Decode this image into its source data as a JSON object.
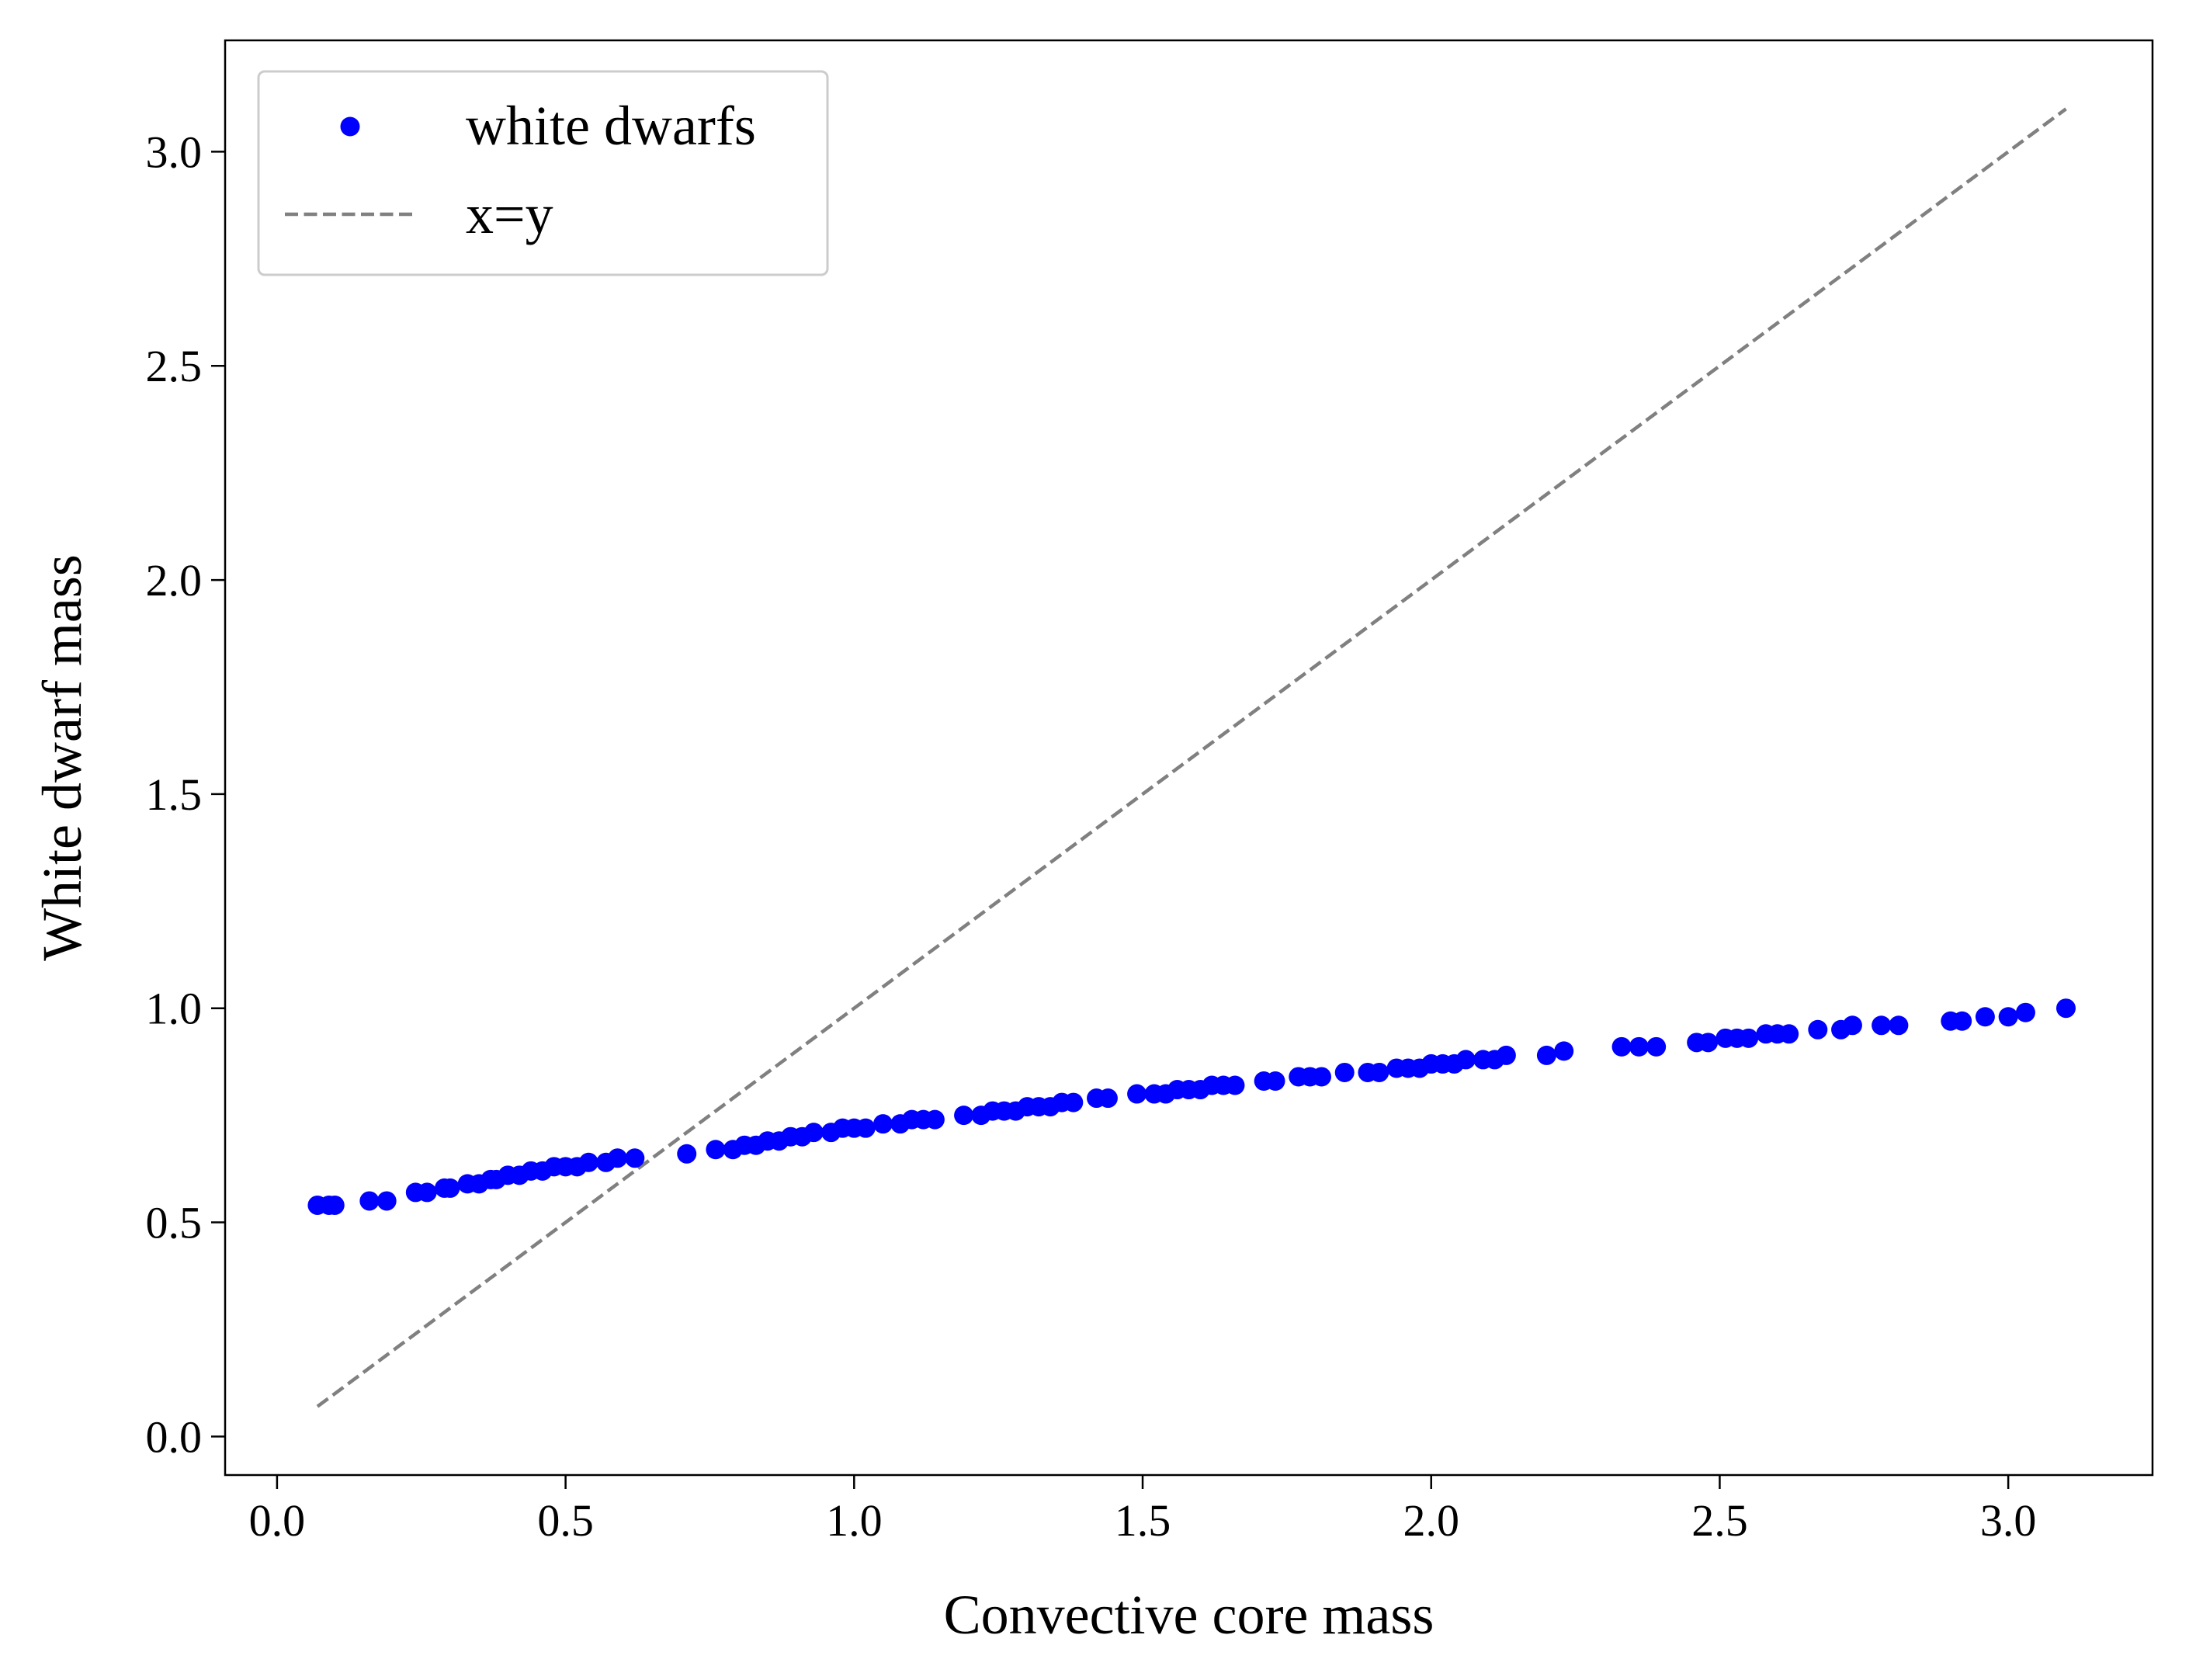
{
  "chart_data": {
    "type": "scatter",
    "xlabel": "Convective core mass",
    "ylabel": "White dwarf mass",
    "xlim": [
      -0.09,
      3.25
    ],
    "ylim": [
      -0.09,
      3.26
    ],
    "xticks": [
      0.0,
      0.5,
      1.0,
      1.5,
      2.0,
      2.5,
      3.0
    ],
    "xtick_labels": [
      "0.0",
      "0.5",
      "1.0",
      "1.5",
      "2.0",
      "2.5",
      "3.0"
    ],
    "yticks": [
      0.0,
      0.5,
      1.0,
      1.5,
      2.0,
      2.5,
      3.0
    ],
    "ytick_labels": [
      "0.0",
      "0.5",
      "1.0",
      "1.5",
      "2.0",
      "2.5",
      "3.0"
    ],
    "grid": false,
    "legend": {
      "placement": "upper-left",
      "entries": [
        {
          "label": "white dwarfs",
          "marker": "dot",
          "color": "#0000ff"
        },
        {
          "label": "x=y",
          "marker": "dashed-line",
          "color": "#808080"
        }
      ]
    },
    "series": [
      {
        "name": "white dwarfs",
        "kind": "scatter",
        "color": "#0000ff",
        "x": [
          0.07,
          0.09,
          0.1,
          0.16,
          0.19,
          0.24,
          0.26,
          0.29,
          0.3,
          0.33,
          0.35,
          0.37,
          0.38,
          0.4,
          0.42,
          0.44,
          0.46,
          0.48,
          0.5,
          0.52,
          0.54,
          0.57,
          0.59,
          0.62,
          0.71,
          0.76,
          0.79,
          0.81,
          0.83,
          0.85,
          0.87,
          0.89,
          0.91,
          0.93,
          0.96,
          0.98,
          1.0,
          1.02,
          1.05,
          1.08,
          1.1,
          1.12,
          1.14,
          1.19,
          1.22,
          1.24,
          1.26,
          1.28,
          1.3,
          1.32,
          1.34,
          1.36,
          1.38,
          1.42,
          1.44,
          1.49,
          1.52,
          1.54,
          1.56,
          1.58,
          1.6,
          1.62,
          1.64,
          1.66,
          1.71,
          1.73,
          1.77,
          1.79,
          1.81,
          1.85,
          1.89,
          1.91,
          1.94,
          1.96,
          1.98,
          2.0,
          2.02,
          2.04,
          2.06,
          2.09,
          2.11,
          2.13,
          2.2,
          2.23,
          2.33,
          2.36,
          2.39,
          2.46,
          2.48,
          2.51,
          2.53,
          2.55,
          2.58,
          2.6,
          2.62,
          2.67,
          2.71,
          2.73,
          2.78,
          2.81,
          2.9,
          2.92,
          2.96,
          3.0,
          3.03,
          3.1
        ],
        "y": [
          0.54,
          0.54,
          0.54,
          0.55,
          0.55,
          0.57,
          0.57,
          0.58,
          0.58,
          0.59,
          0.59,
          0.6,
          0.6,
          0.61,
          0.61,
          0.62,
          0.62,
          0.63,
          0.63,
          0.63,
          0.64,
          0.64,
          0.65,
          0.65,
          0.66,
          0.67,
          0.67,
          0.68,
          0.68,
          0.69,
          0.69,
          0.7,
          0.7,
          0.71,
          0.71,
          0.72,
          0.72,
          0.72,
          0.73,
          0.73,
          0.74,
          0.74,
          0.74,
          0.75,
          0.75,
          0.76,
          0.76,
          0.76,
          0.77,
          0.77,
          0.77,
          0.78,
          0.78,
          0.79,
          0.79,
          0.8,
          0.8,
          0.8,
          0.81,
          0.81,
          0.81,
          0.82,
          0.82,
          0.82,
          0.83,
          0.83,
          0.84,
          0.84,
          0.84,
          0.85,
          0.85,
          0.85,
          0.86,
          0.86,
          0.86,
          0.87,
          0.87,
          0.87,
          0.88,
          0.88,
          0.88,
          0.89,
          0.89,
          0.9,
          0.91,
          0.91,
          0.91,
          0.92,
          0.92,
          0.93,
          0.93,
          0.93,
          0.94,
          0.94,
          0.94,
          0.95,
          0.95,
          0.96,
          0.96,
          0.96,
          0.97,
          0.97,
          0.98,
          0.98,
          0.99,
          1.0
        ]
      },
      {
        "name": "x=y",
        "kind": "line",
        "style": "dashed",
        "color": "#808080",
        "x": [
          0.07,
          3.1
        ],
        "y": [
          0.07,
          3.1
        ]
      }
    ]
  }
}
